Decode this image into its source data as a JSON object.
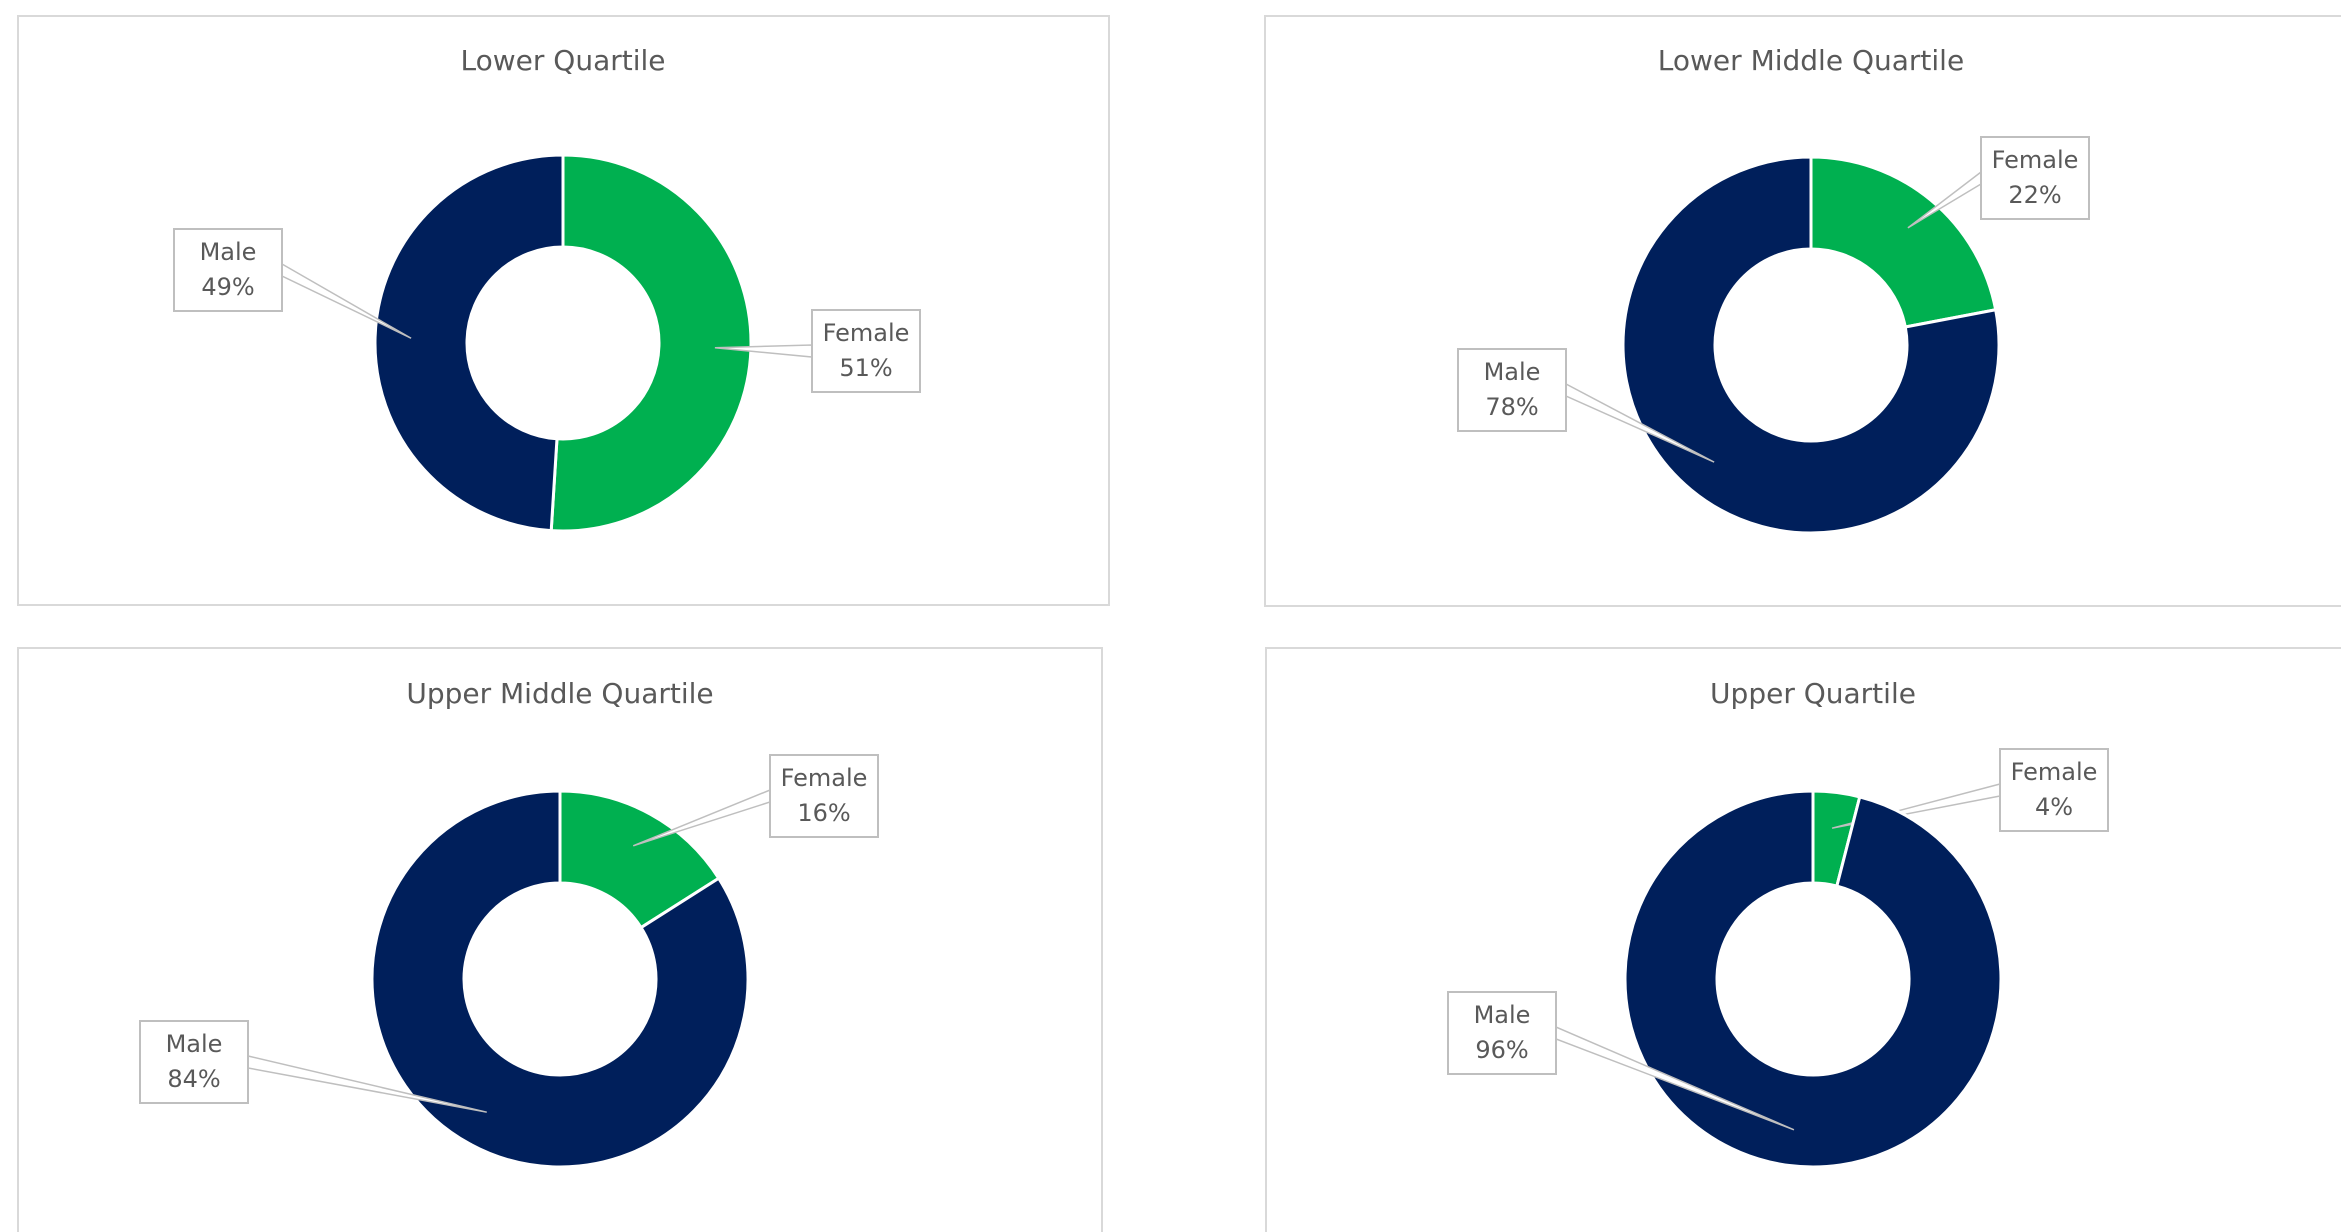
{
  "chart_data": [
    {
      "type": "doughnut",
      "title": "Lower Quartile",
      "categories": [
        "Female",
        "Male"
      ],
      "values": [
        51,
        49
      ],
      "value_labels": [
        "51%",
        "49%"
      ],
      "colors": [
        "#00b050",
        "#001f5b"
      ]
    },
    {
      "type": "doughnut",
      "title": "Lower Middle Quartile",
      "categories": [
        "Female",
        "Male"
      ],
      "values": [
        22,
        78
      ],
      "value_labels": [
        "22%",
        "78%"
      ],
      "colors": [
        "#00b050",
        "#001f5b"
      ]
    },
    {
      "type": "doughnut",
      "title": "Upper Middle Quartile",
      "categories": [
        "Female",
        "Male"
      ],
      "values": [
        16,
        84
      ],
      "value_labels": [
        "16%",
        "84%"
      ],
      "colors": [
        "#00b050",
        "#001f5b"
      ]
    },
    {
      "type": "doughnut",
      "title": "Upper Quartile",
      "categories": [
        "Female",
        "Male"
      ],
      "values": [
        4,
        96
      ],
      "value_labels": [
        "4%",
        "96%"
      ],
      "colors": [
        "#00b050",
        "#001f5b"
      ]
    }
  ]
}
